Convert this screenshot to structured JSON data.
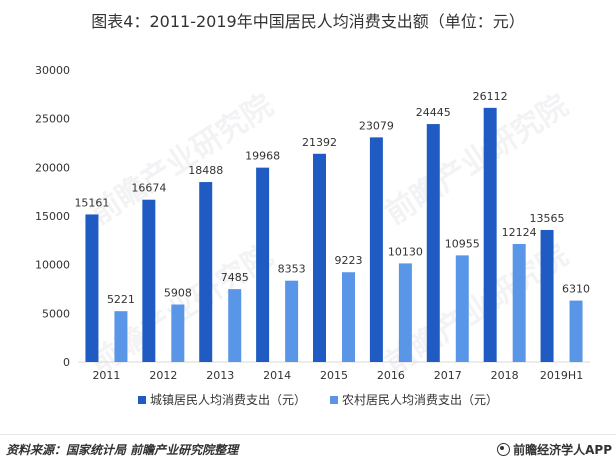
{
  "title": "图表4：2011-2019年中国居民人均消费支出额（单位：元）",
  "source": "资料来源：国家统计局 前瞻产业研究院整理",
  "brand": "前瞻经济学人APP",
  "watermark": "前瞻产业研究院",
  "colors": {
    "urban": "#1f5bc2",
    "rural": "#5a96e8",
    "axis": "#d9d9d9",
    "grid": "#ececec"
  },
  "chart_data": {
    "type": "bar",
    "title": "图表4：2011-2019年中国居民人均消费支出额（单位：元）",
    "categories": [
      "2011",
      "2012",
      "2013",
      "2014",
      "2015",
      "2016",
      "2017",
      "2018",
      "2019H1"
    ],
    "series": [
      {
        "name": "城镇居民人均消费支出（元）",
        "values": [
          15161,
          16674,
          18488,
          19968,
          21392,
          23079,
          24445,
          26112,
          13565
        ]
      },
      {
        "name": "农村居民人均消费支出（元）",
        "values": [
          5221,
          5908,
          7485,
          8353,
          9223,
          10130,
          10955,
          12124,
          6310
        ]
      }
    ],
    "ylim": [
      0,
      30000
    ],
    "yticks": [
      0,
      5000,
      10000,
      15000,
      20000,
      25000,
      30000
    ],
    "xlabel": "",
    "ylabel": "",
    "grid": false,
    "legend": "bottom"
  }
}
